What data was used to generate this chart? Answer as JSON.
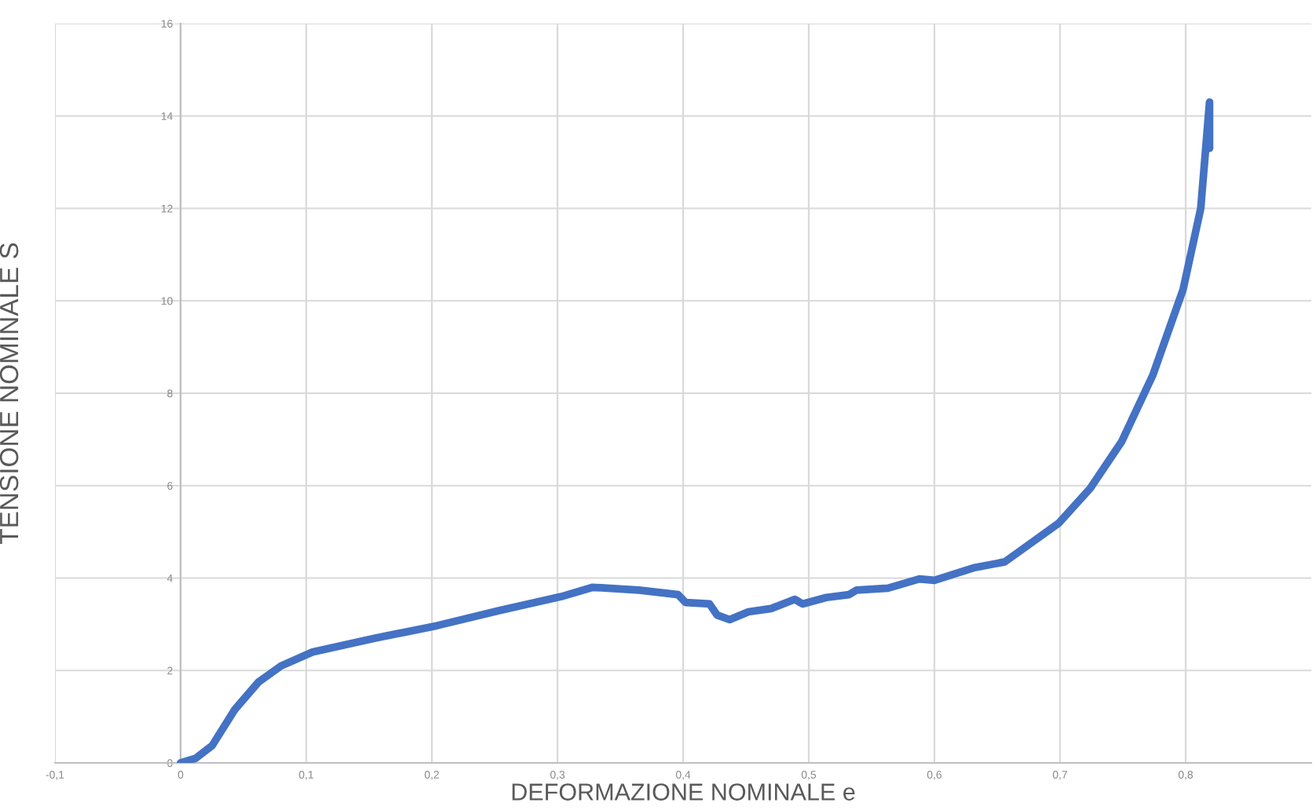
{
  "chart_data": {
    "type": "line",
    "xlabel": "DEFORMAZIONE NOMINALE e",
    "ylabel": "TENSIONE NOMINALE S",
    "series": [
      {
        "color": "#4472c4",
        "x": [
          0,
          0.012,
          0.025,
          0.043,
          0.062,
          0.08,
          0.105,
          0.155,
          0.204,
          0.254,
          0.303,
          0.328,
          0.365,
          0.384,
          0.396,
          0.402,
          0.421,
          0.427,
          0.437,
          0.452,
          0.47,
          0.489,
          0.495,
          0.514,
          0.532,
          0.538,
          0.563,
          0.588,
          0.6,
          0.631,
          0.656,
          0.675,
          0.699,
          0.724,
          0.749,
          0.774,
          0.798,
          0.812,
          0.819,
          0.819
        ],
        "values": [
          0,
          0.1,
          0.37,
          1.15,
          1.75,
          2.1,
          2.4,
          2.7,
          2.97,
          3.3,
          3.6,
          3.8,
          3.74,
          3.68,
          3.64,
          3.47,
          3.44,
          3.2,
          3.1,
          3.27,
          3.34,
          3.54,
          3.44,
          3.58,
          3.64,
          3.74,
          3.78,
          3.98,
          3.95,
          4.22,
          4.35,
          4.72,
          5.19,
          5.94,
          6.95,
          8.4,
          10.25,
          12.0,
          14.3,
          13.3
        ]
      }
    ],
    "xlim": [
      -0.1,
      0.9
    ],
    "xticks": [
      {
        "value": -0.1,
        "label": "-0,1"
      },
      0,
      {
        "value": 0.1,
        "label": "0,1"
      },
      {
        "value": 0.2,
        "label": "0,2"
      },
      {
        "value": 0.3,
        "label": "0,3"
      },
      {
        "value": 0.4,
        "label": "0,4"
      },
      {
        "value": 0.5,
        "label": "0,5"
      },
      {
        "value": 0.6,
        "label": "0,6"
      },
      {
        "value": 0.7,
        "label": "0,7"
      },
      {
        "value": 0.8,
        "label": "0,8"
      }
    ],
    "ylim": [
      0,
      16
    ],
    "yticks": [
      0,
      2,
      4,
      6,
      8,
      10,
      12,
      14,
      16
    ],
    "grid": true,
    "marker": "none",
    "line_style": "solid",
    "legend": false
  }
}
